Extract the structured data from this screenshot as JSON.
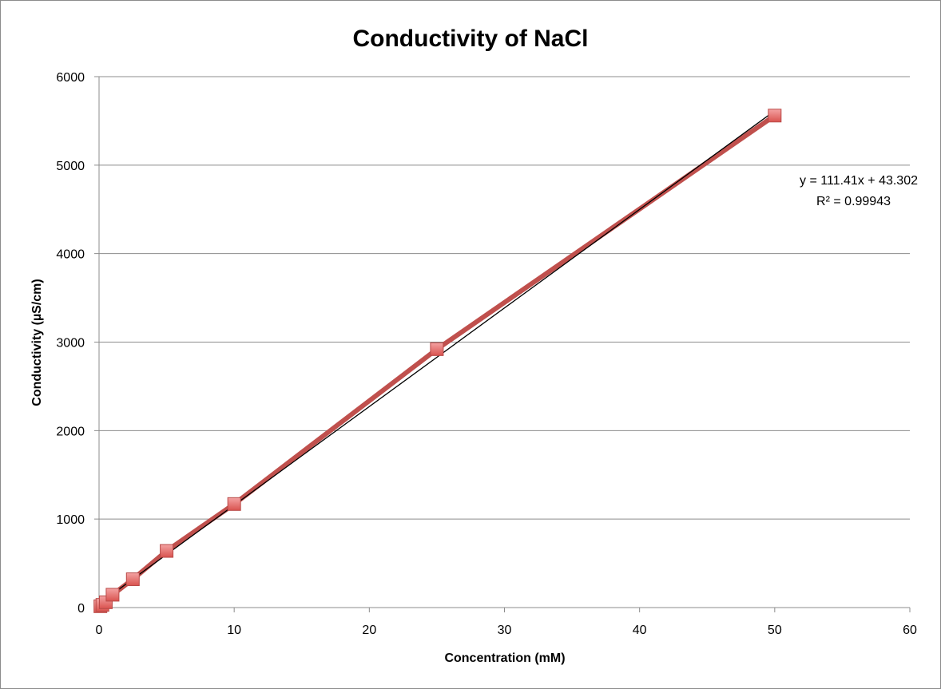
{
  "chart_data": {
    "type": "scatter",
    "title": "Conductivity of NaCl",
    "xlabel": "Concentration (mM)",
    "ylabel": "Conductivity (µS/cm)",
    "xlim": [
      0,
      60
    ],
    "ylim": [
      0,
      6000
    ],
    "x_ticks": [
      "0",
      "10",
      "20",
      "30",
      "40",
      "50",
      "60"
    ],
    "y_ticks": [
      "0",
      "1000",
      "2000",
      "3000",
      "4000",
      "5000",
      "6000"
    ],
    "grid": "horizontal",
    "series": [
      {
        "x": [
          0.1,
          0.25,
          0.5,
          1,
          2.5,
          5,
          10,
          25,
          50
        ],
        "y": [
          15,
          30,
          60,
          145,
          320,
          640,
          1170,
          2920,
          5560
        ],
        "marker": "square",
        "color": "#e06666",
        "line_color": "#c0504d"
      }
    ],
    "trendline": {
      "slope": 111.41,
      "intercept": 43.302,
      "color": "#000000",
      "equation": "y = 111.41x + 43.302",
      "r_squared": "R² = 0.99943"
    }
  }
}
